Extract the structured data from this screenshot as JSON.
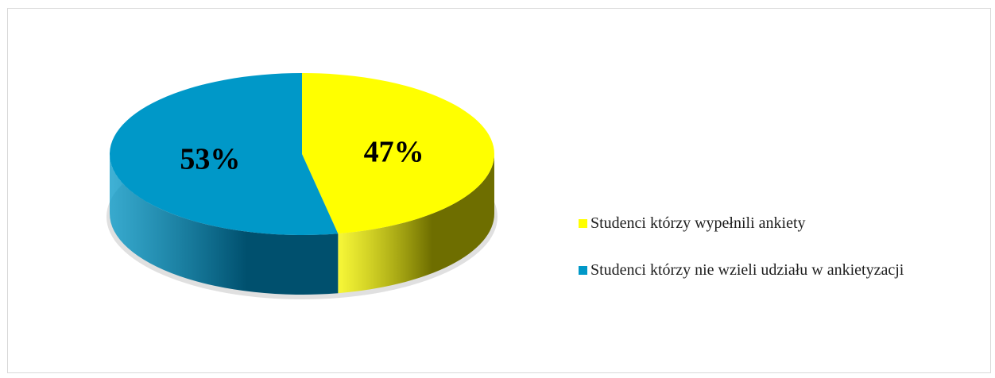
{
  "chart_data": {
    "type": "pie",
    "style": "3d",
    "slices": [
      {
        "label": "Studenci którzy wypełnili ankiety",
        "value": 47,
        "display": "47%",
        "color": "#ffff00",
        "side_color": "#6e6e00"
      },
      {
        "label": "Studenci którzy nie wzieli udziału w ankietyzacji",
        "value": 53,
        "display": "53%",
        "color": "#0098c8",
        "side_color": "#00506e"
      }
    ],
    "legend_position": "right"
  },
  "legend": {
    "items": [
      {
        "label": "Studenci którzy wypełnili ankiety",
        "color": "#ffff00"
      },
      {
        "label": "Studenci którzy nie wzieli udziału w ankietyzacji",
        "color": "#0098c8"
      }
    ]
  }
}
